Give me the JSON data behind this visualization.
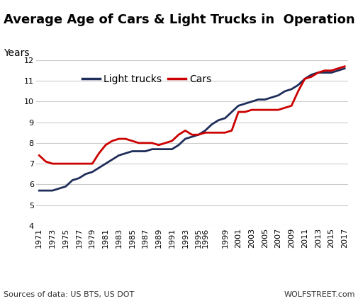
{
  "title": "Average Age of Cars & Light Trucks in  Operation",
  "ylabel": "Years",
  "source_left": "Sources of data: US BTS, US DOT",
  "source_right": "WOLFSTREET.com",
  "ylim": [
    4,
    12
  ],
  "yticks": [
    4,
    5,
    6,
    7,
    8,
    9,
    10,
    11,
    12
  ],
  "light_trucks": {
    "label": "Light trucks",
    "color": "#1f2d5a",
    "years": [
      1971,
      1972,
      1973,
      1974,
      1975,
      1976,
      1977,
      1978,
      1979,
      1980,
      1981,
      1982,
      1983,
      1984,
      1985,
      1986,
      1987,
      1988,
      1989,
      1990,
      1991,
      1992,
      1993,
      1994,
      1995,
      1996,
      1997,
      1998,
      1999,
      2000,
      2001,
      2002,
      2003,
      2004,
      2005,
      2006,
      2007,
      2008,
      2009,
      2010,
      2011,
      2012,
      2013,
      2014,
      2015,
      2016,
      2017
    ],
    "values": [
      5.7,
      5.7,
      5.7,
      5.8,
      5.9,
      6.2,
      6.3,
      6.5,
      6.6,
      6.8,
      7.0,
      7.2,
      7.4,
      7.5,
      7.6,
      7.6,
      7.6,
      7.7,
      7.7,
      7.7,
      7.7,
      7.9,
      8.2,
      8.3,
      8.4,
      8.6,
      8.9,
      9.1,
      9.2,
      9.5,
      9.8,
      9.9,
      10.0,
      10.1,
      10.1,
      10.2,
      10.3,
      10.5,
      10.6,
      10.8,
      11.1,
      11.3,
      11.4,
      11.4,
      11.4,
      11.5,
      11.6
    ]
  },
  "cars": {
    "label": "Cars",
    "color": "#cc0000",
    "years": [
      1971,
      1972,
      1973,
      1974,
      1975,
      1976,
      1977,
      1978,
      1979,
      1980,
      1981,
      1982,
      1983,
      1984,
      1985,
      1986,
      1987,
      1988,
      1989,
      1990,
      1991,
      1992,
      1993,
      1994,
      1995,
      1996,
      1997,
      1998,
      1999,
      2000,
      2001,
      2002,
      2003,
      2004,
      2005,
      2006,
      2007,
      2008,
      2009,
      2010,
      2011,
      2012,
      2013,
      2014,
      2015,
      2016,
      2017
    ],
    "values": [
      7.4,
      7.1,
      7.0,
      7.0,
      7.0,
      7.0,
      7.0,
      7.0,
      7.0,
      7.5,
      7.9,
      8.1,
      8.2,
      8.2,
      8.1,
      8.0,
      8.0,
      8.0,
      7.9,
      8.0,
      8.1,
      8.4,
      8.6,
      8.4,
      8.4,
      8.5,
      8.5,
      8.5,
      8.5,
      8.6,
      9.5,
      9.5,
      9.6,
      9.6,
      9.6,
      9.6,
      9.6,
      9.7,
      9.8,
      10.5,
      11.1,
      11.2,
      11.4,
      11.5,
      11.5,
      11.6,
      11.7
    ]
  },
  "xtick_labels": [
    "1971",
    "1973",
    "1975",
    "1977",
    "1979",
    "1981",
    "1983",
    "1985",
    "1987",
    "1989",
    "1991",
    "1993",
    "1995",
    "1996",
    "1999",
    "2001",
    "2003",
    "2005",
    "2007",
    "2009",
    "2011",
    "2013",
    "2015",
    "2017"
  ],
  "xtick_years": [
    1971,
    1973,
    1975,
    1977,
    1979,
    1981,
    1983,
    1985,
    1987,
    1989,
    1991,
    1993,
    1995,
    1996,
    1999,
    2001,
    2003,
    2005,
    2007,
    2009,
    2011,
    2013,
    2015,
    2017
  ],
  "background_color": "#ffffff",
  "grid_color": "#cccccc",
  "title_fontsize": 13,
  "ylabel_fontsize": 10,
  "tick_fontsize": 8,
  "legend_fontsize": 10,
  "source_fontsize": 8
}
